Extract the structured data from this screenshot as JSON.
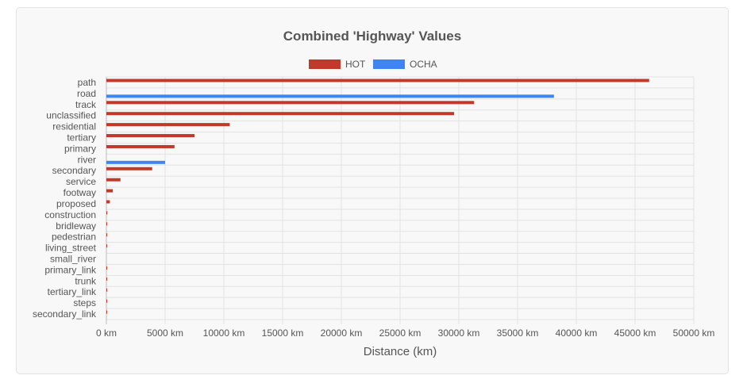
{
  "chart_data": {
    "type": "bar",
    "orientation": "horizontal",
    "title": "Combined 'Highway' Values",
    "xlabel": "Distance (km)",
    "ylabel": "",
    "xlim": [
      0,
      50000
    ],
    "x_ticks": [
      "0 km",
      "5000 km",
      "10000 km",
      "15000 km",
      "20000 km",
      "25000 km",
      "30000 km",
      "35000 km",
      "40000 km",
      "45000 km",
      "50000 km"
    ],
    "grid": true,
    "legend_position": "top",
    "categories": [
      "path",
      "road",
      "track",
      "unclassified",
      "residential",
      "tertiary",
      "primary",
      "river",
      "secondary",
      "service",
      "footway",
      "proposed",
      "construction",
      "bridleway",
      "pedestrian",
      "living_street",
      "small_river",
      "primary_link",
      "trunk",
      "tertiary_link",
      "steps",
      "secondary_link"
    ],
    "series": [
      {
        "name": "HOT",
        "color": "#c0392b",
        "values": [
          46200,
          0,
          31300,
          29600,
          10500,
          7500,
          5800,
          0,
          3900,
          1200,
          550,
          300,
          80,
          20,
          15,
          10,
          0,
          8,
          6,
          5,
          4,
          3
        ]
      },
      {
        "name": "OCHA",
        "color": "#3d85f0",
        "values": [
          0,
          38100,
          0,
          0,
          0,
          0,
          0,
          5000,
          0,
          0,
          0,
          0,
          0,
          0,
          0,
          0,
          0,
          0,
          0,
          0,
          0,
          0
        ]
      }
    ]
  }
}
